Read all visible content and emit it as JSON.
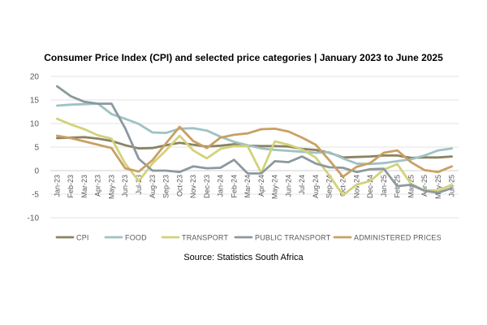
{
  "chart_data": {
    "type": "line",
    "title": "Consumer Price Index (CPI) and selected price categories | January 2023 to June 2025",
    "source": "Source: Statistics South Africa",
    "ylim": [
      -10,
      20
    ],
    "yticks": [
      -10,
      -5,
      0,
      5,
      10,
      15,
      20
    ],
    "grid": true,
    "legend_position": "bottom",
    "categories": [
      "Jan-23",
      "Feb-23",
      "Mar-23",
      "Apr-23",
      "May-23",
      "Jun-23",
      "Jul-23",
      "Aug-23",
      "Sep-23",
      "Oct-23",
      "Nov-23",
      "Dec-23",
      "Jan-24",
      "Feb-24",
      "Mar-24",
      "Apr-24",
      "May-24",
      "Jun-24",
      "Jul-24",
      "Aug-24",
      "Sep-24",
      "Oct-24",
      "Nov-24",
      "Dec-24",
      "Jan-25",
      "Feb-25",
      "Mar-25",
      "Apr-25",
      "May-25",
      "Jun-25"
    ],
    "series": [
      {
        "name": "CPI",
        "color": "#8c8262",
        "values": [
          6.9,
          7.0,
          7.1,
          6.8,
          6.3,
          5.4,
          4.7,
          4.8,
          5.4,
          5.9,
          5.5,
          5.1,
          5.3,
          5.6,
          5.3,
          5.2,
          5.2,
          5.1,
          4.6,
          4.4,
          3.8,
          2.8,
          2.9,
          3.0,
          3.2,
          3.2,
          2.7,
          2.8,
          2.8,
          3.0
        ]
      },
      {
        "name": "FOOD",
        "color": "#9fc2c4",
        "values": [
          13.8,
          14.0,
          14.1,
          14.2,
          12.0,
          11.0,
          9.9,
          8.1,
          8.0,
          8.9,
          9.0,
          8.5,
          7.2,
          6.1,
          5.4,
          4.7,
          4.4,
          4.2,
          4.0,
          3.8,
          3.9,
          2.6,
          1.5,
          1.4,
          1.6,
          2.0,
          2.4,
          3.2,
          4.3,
          4.7
        ]
      },
      {
        "name": "TRANSPORT",
        "color": "#d2d27a",
        "values": [
          11.0,
          9.8,
          8.8,
          7.5,
          6.8,
          1.5,
          -2.2,
          1.5,
          4.3,
          7.4,
          4.3,
          2.6,
          4.6,
          5.2,
          5.2,
          -0.5,
          6.2,
          5.5,
          4.5,
          2.8,
          -1.0,
          -5.2,
          -3.0,
          -2.2,
          0.2,
          1.4,
          -2.8,
          -4.2,
          -4.2,
          -3.0
        ]
      },
      {
        "name": "PUBLIC TRANSPORT",
        "color": "#8c999f",
        "values": [
          17.9,
          15.8,
          14.6,
          14.2,
          14.2,
          9.0,
          2.5,
          0.0,
          0.0,
          -0.3,
          0.9,
          0.5,
          0.6,
          2.3,
          -0.6,
          -0.6,
          2.0,
          1.8,
          3.0,
          1.5,
          0.7,
          0.6,
          -0.3,
          0.3,
          0.4,
          -3.3,
          -3.0,
          -4.3,
          -4.7,
          -3.7
        ]
      },
      {
        "name": "ADMINISTERED PRICES",
        "color": "#c9a064",
        "values": [
          7.4,
          6.9,
          6.2,
          5.5,
          4.8,
          0.5,
          -0.2,
          2.2,
          5.8,
          9.3,
          6.3,
          4.8,
          7.0,
          7.6,
          7.9,
          8.8,
          8.9,
          8.3,
          7.0,
          5.5,
          2.2,
          -1.3,
          0.8,
          1.6,
          3.8,
          4.3,
          1.8,
          0.1,
          -0.3,
          0.9
        ]
      }
    ]
  }
}
